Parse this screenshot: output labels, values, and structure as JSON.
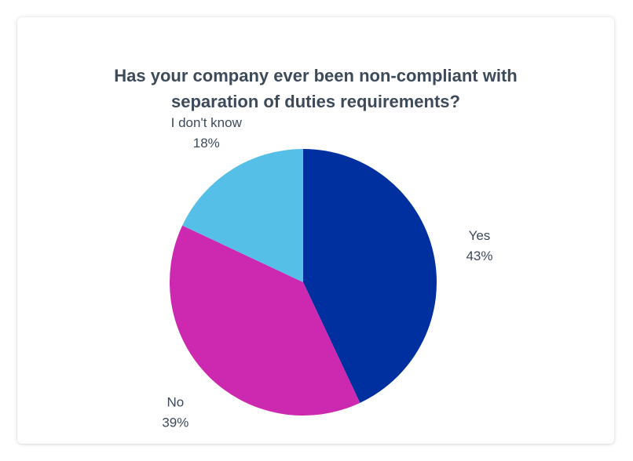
{
  "chart_data": {
    "type": "pie",
    "title_lines": [
      "Has your company ever been non-compliant with",
      "separation of duties requirements?"
    ],
    "slices": [
      {
        "label": "Yes",
        "value": 43,
        "value_label": "43%",
        "color": "#0030a0"
      },
      {
        "label": "No",
        "value": 39,
        "value_label": "39%",
        "color": "#cc28b0"
      },
      {
        "label": "I don't know",
        "value": 18,
        "value_label": "18%",
        "color": "#55bfe8"
      }
    ],
    "start_angle_deg": 0,
    "direction": "clockwise"
  }
}
